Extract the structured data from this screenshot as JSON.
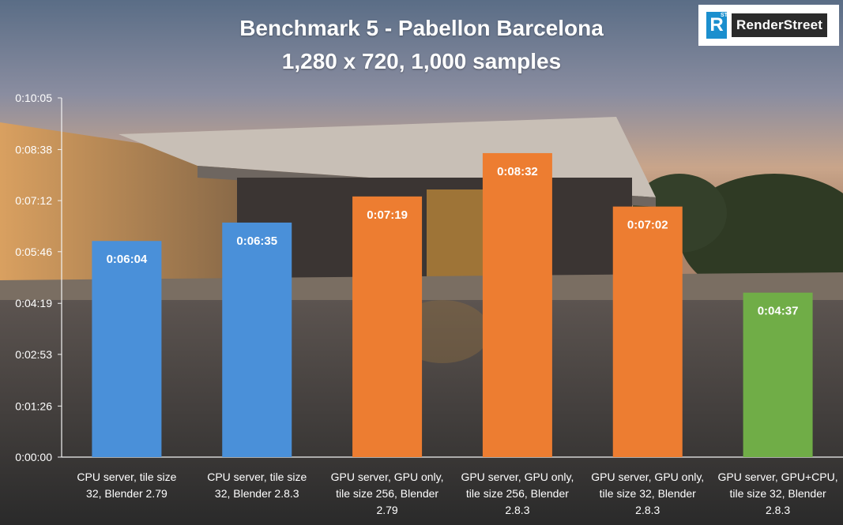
{
  "chart_data": {
    "type": "bar",
    "title": "Benchmark 5 - Pabellon Barcelona",
    "subtitle": "1,280 x 720, 1,000 samples",
    "categories": [
      [
        "CPU server, tile size",
        "32, Blender 2.79"
      ],
      [
        "CPU server, tile size",
        "32, Blender 2.8.3"
      ],
      [
        "GPU server, GPU only,",
        "tile size 256, Blender",
        "2.79"
      ],
      [
        "GPU server, GPU only,",
        "tile size 256, Blender",
        "2.8.3"
      ],
      [
        "GPU server, GPU only,",
        "tile size 32, Blender",
        "2.8.3"
      ],
      [
        "GPU server, GPU+CPU,",
        "tile size 32, Blender",
        "2.8.3"
      ]
    ],
    "values_seconds": [
      364,
      395,
      439,
      512,
      422,
      277
    ],
    "value_labels": [
      "0:06:04",
      "0:06:35",
      "0:07:19",
      "0:08:32",
      "0:07:02",
      "0:04:37"
    ],
    "bar_colors": [
      "#4a90d9",
      "#4a90d9",
      "#ed7d31",
      "#ed7d31",
      "#ed7d31",
      "#70ad47"
    ],
    "ylim_seconds": [
      0,
      605
    ],
    "y_ticks_seconds": [
      0,
      86,
      173,
      259,
      346,
      432,
      518,
      605
    ],
    "y_tick_labels": [
      "0:00:00",
      "0:01:26",
      "0:02:53",
      "0:04:19",
      "0:05:46",
      "0:07:12",
      "0:08:38",
      "0:10:05"
    ],
    "grid": false,
    "legend": "none"
  },
  "logo": {
    "mark_letter": "R",
    "mark_superscript": "ST",
    "text": "RenderStreet"
  }
}
